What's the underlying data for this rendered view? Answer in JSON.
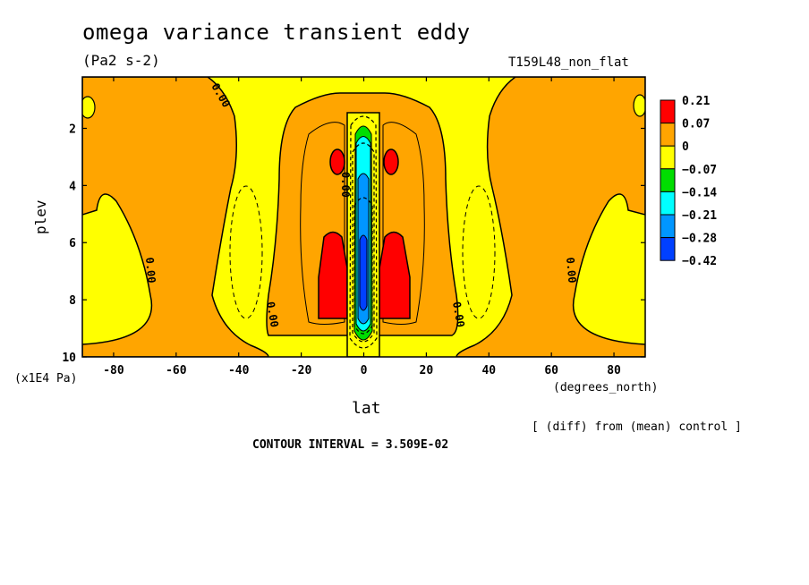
{
  "chart_data": {
    "type": "heatmap",
    "title": "omega variance transient eddy",
    "units": "(Pa2 s-2)",
    "run_label": "T159L48_non_flat",
    "xlabel": "lat",
    "x_units": "(degrees_north)",
    "ylabel": "plev",
    "y_units": "(x1E4 Pa)",
    "xlim": [
      -90,
      90
    ],
    "ylim": [
      10,
      0.2
    ],
    "x_ticks": [
      -80,
      -60,
      -40,
      -20,
      0,
      20,
      40,
      60,
      80
    ],
    "x_tick_labels": [
      "-80",
      "-60",
      "-40",
      "-20",
      "0",
      "20",
      "40",
      "60",
      "80"
    ],
    "y_ticks": [
      2,
      4,
      6,
      8,
      10
    ],
    "y_tick_labels": [
      "2",
      "4",
      "6",
      "8",
      "10"
    ],
    "note": "[ (diff) from (mean) control ]",
    "contour_interval": "CONTOUR INTERVAL = 3.509E-02",
    "contour_labels": [
      "0.00",
      "0.00",
      "0.00",
      "0.00",
      "0.00",
      "0.00"
    ],
    "colorbar": {
      "labels": [
        "0.21",
        "0.07",
        "0",
        "−0.07",
        "−0.14",
        "−0.21",
        "−0.28",
        "−0.42"
      ],
      "colors": [
        "#ff0000",
        "#ffa500",
        "#ffff00",
        "#00dd00",
        "#00ffff",
        "#0096ff",
        "#0040ff"
      ]
    },
    "colors": {
      "positive_low": "#ffa500",
      "near_zero": "#ffff00",
      "positive_high": "#ff0000",
      "negative_low": "#00dd00",
      "negative_mid": "#00ffff",
      "negative_high": "#0096ff",
      "negative_max": "#0040ff"
    }
  }
}
